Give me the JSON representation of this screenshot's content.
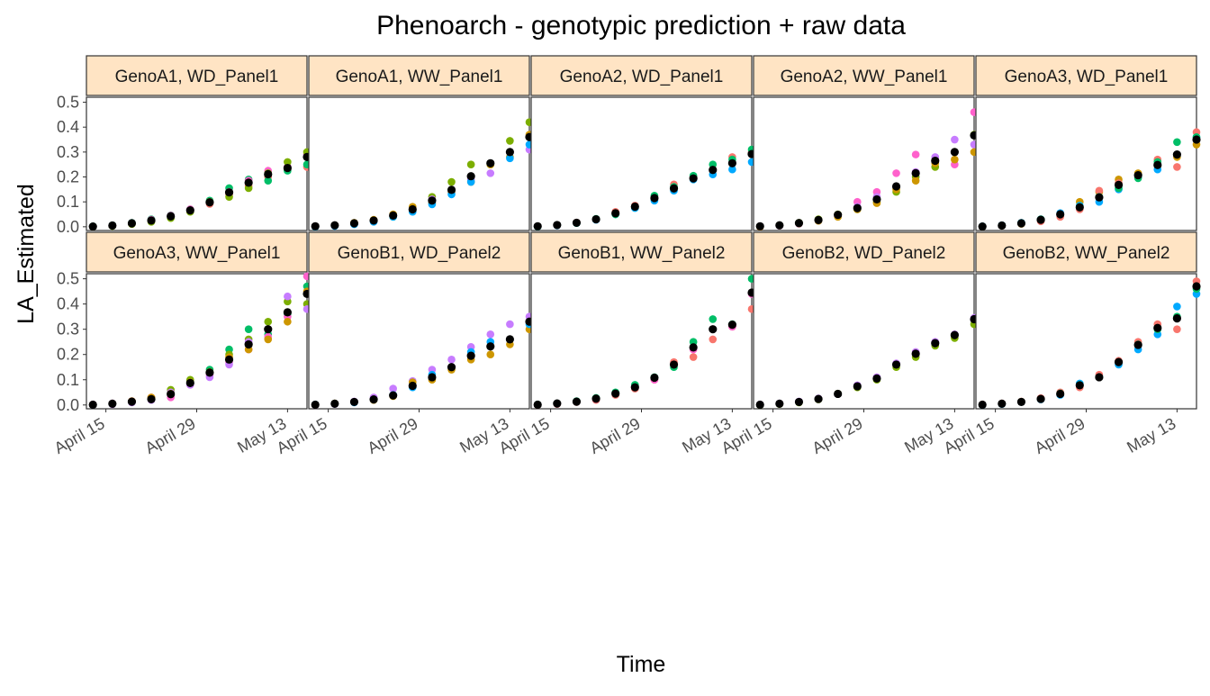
{
  "chart_data": {
    "type": "scatter",
    "title": "Phenoarch - genotypic prediction + raw data",
    "xlabel": "Time",
    "ylabel": "LA_Estimated",
    "x_ticks": [
      "April 15",
      "April 29",
      "May 13"
    ],
    "x_tick_dates": [
      "2017-04-15",
      "2017-04-29",
      "2017-05-13"
    ],
    "x_range": [
      "2017-04-12",
      "2017-05-16"
    ],
    "y_ticks": [
      "0.0",
      "0.1",
      "0.2",
      "0.3",
      "0.4",
      "0.5"
    ],
    "ylim": [
      -0.015,
      0.52
    ],
    "grid": false,
    "x_dates": [
      "2017-04-13",
      "2017-04-16",
      "2017-04-19",
      "2017-04-22",
      "2017-04-25",
      "2017-04-28",
      "2017-05-01",
      "2017-05-04",
      "2017-05-07",
      "2017-05-10",
      "2017-05-13",
      "2017-05-16"
    ],
    "colors": {
      "prediction": "#000000",
      "strip_fill": "#FFE4C4",
      "panel_border": "#333333",
      "replicates": [
        "#F8766D",
        "#CD9600",
        "#7CAE00",
        "#00BE67",
        "#00A9FF",
        "#C77CFF",
        "#FF61CC"
      ]
    },
    "panels": [
      {
        "label": "GenoA1, WD_Panel1",
        "prediction": [
          0.001,
          0.005,
          0.014,
          0.025,
          0.042,
          0.066,
          0.098,
          0.138,
          0.177,
          0.211,
          0.236,
          0.28
        ],
        "raw": [
          [
            0.0,
            0.004,
            0.012,
            0.022,
            0.04,
            0.062,
            0.092,
            0.13,
            0.165,
            0.2,
            0.23,
            0.24
          ],
          [
            0.002,
            0.006,
            0.016,
            0.03,
            0.046,
            0.07,
            0.105,
            0.155,
            0.19,
            0.185,
            0.225,
            0.25
          ],
          [
            0.001,
            0.005,
            0.015,
            0.028,
            0.045,
            0.07,
            0.1,
            0.14,
            0.185,
            0.225,
            0.24,
            0.29
          ],
          [
            0.0,
            0.003,
            0.011,
            0.02,
            0.035,
            0.06,
            0.1,
            0.12,
            0.155,
            0.215,
            0.26,
            0.3
          ]
        ]
      },
      {
        "label": "GenoA1, WW_Panel1",
        "prediction": [
          0.002,
          0.006,
          0.014,
          0.025,
          0.045,
          0.07,
          0.105,
          0.148,
          0.203,
          0.255,
          0.3,
          0.36
        ],
        "raw": [
          [
            0.0,
            0.005,
            0.012,
            0.022,
            0.04,
            0.065,
            0.12,
            0.18,
            0.25,
            0.25,
            0.345,
            0.42
          ],
          [
            0.001,
            0.004,
            0.013,
            0.023,
            0.042,
            0.072,
            0.11,
            0.14,
            0.19,
            0.215,
            0.3,
            0.31
          ],
          [
            0.002,
            0.006,
            0.016,
            0.028,
            0.05,
            0.08,
            0.095,
            0.14,
            0.18,
            0.25,
            0.28,
            0.37
          ],
          [
            0.0,
            0.003,
            0.01,
            0.02,
            0.04,
            0.06,
            0.09,
            0.13,
            0.18,
            0.255,
            0.275,
            0.33
          ]
        ]
      },
      {
        "label": "GenoA2, WD_Panel1",
        "prediction": [
          0.002,
          0.007,
          0.016,
          0.03,
          0.054,
          0.081,
          0.115,
          0.154,
          0.194,
          0.228,
          0.255,
          0.292
        ],
        "raw": [
          [
            0.001,
            0.005,
            0.015,
            0.028,
            0.05,
            0.075,
            0.105,
            0.145,
            0.19,
            0.21,
            0.23,
            0.26
          ],
          [
            0.002,
            0.006,
            0.017,
            0.03,
            0.06,
            0.085,
            0.12,
            0.17,
            0.2,
            0.23,
            0.28,
            0.3
          ],
          [
            0.001,
            0.007,
            0.015,
            0.032,
            0.05,
            0.08,
            0.125,
            0.16,
            0.205,
            0.25,
            0.27,
            0.31
          ]
        ]
      },
      {
        "label": "GenoA2, WW_Panel1",
        "prediction": [
          0.002,
          0.006,
          0.015,
          0.027,
          0.048,
          0.075,
          0.11,
          0.162,
          0.215,
          0.265,
          0.3,
          0.367
        ],
        "raw": [
          [
            0.0,
            0.005,
            0.014,
            0.025,
            0.045,
            0.1,
            0.14,
            0.215,
            0.29,
            0.27,
            0.25,
            0.46
          ],
          [
            0.001,
            0.006,
            0.016,
            0.03,
            0.05,
            0.07,
            0.1,
            0.14,
            0.2,
            0.24,
            0.3,
            0.37
          ],
          [
            0.002,
            0.004,
            0.012,
            0.025,
            0.045,
            0.08,
            0.12,
            0.16,
            0.22,
            0.28,
            0.35,
            0.33
          ],
          [
            0.0,
            0.005,
            0.013,
            0.024,
            0.04,
            0.07,
            0.095,
            0.15,
            0.185,
            0.255,
            0.27,
            0.3
          ]
        ]
      },
      {
        "label": "GenoA3, WD_Panel1",
        "prediction": [
          0.001,
          0.005,
          0.014,
          0.028,
          0.05,
          0.078,
          0.118,
          0.168,
          0.207,
          0.248,
          0.29,
          0.35
        ],
        "raw": [
          [
            0.0,
            0.004,
            0.012,
            0.025,
            0.05,
            0.1,
            0.14,
            0.19,
            0.215,
            0.245,
            0.28,
            0.33
          ],
          [
            0.002,
            0.006,
            0.016,
            0.03,
            0.055,
            0.085,
            0.1,
            0.15,
            0.2,
            0.23,
            0.29,
            0.36
          ],
          [
            0.001,
            0.004,
            0.013,
            0.022,
            0.04,
            0.07,
            0.145,
            0.175,
            0.205,
            0.27,
            0.24,
            0.38
          ],
          [
            0.001,
            0.005,
            0.015,
            0.03,
            0.05,
            0.08,
            0.12,
            0.155,
            0.195,
            0.26,
            0.34,
            0.36
          ]
        ]
      },
      {
        "label": "GenoA3, WW_Panel1",
        "prediction": [
          0.001,
          0.005,
          0.013,
          0.023,
          0.043,
          0.087,
          0.128,
          0.18,
          0.24,
          0.3,
          0.367,
          0.44
        ],
        "raw": [
          [
            0.0,
            0.004,
            0.012,
            0.025,
            0.05,
            0.095,
            0.14,
            0.22,
            0.3,
            0.28,
            0.36,
            0.47
          ],
          [
            0.002,
            0.006,
            0.015,
            0.03,
            0.03,
            0.08,
            0.12,
            0.17,
            0.22,
            0.27,
            0.35,
            0.51
          ],
          [
            0.001,
            0.005,
            0.014,
            0.028,
            0.06,
            0.1,
            0.13,
            0.2,
            0.26,
            0.33,
            0.41,
            0.4
          ],
          [
            0.0,
            0.003,
            0.01,
            0.02,
            0.05,
            0.08,
            0.11,
            0.16,
            0.25,
            0.3,
            0.43,
            0.38
          ],
          [
            0.001,
            0.005,
            0.015,
            0.03,
            0.045,
            0.09,
            0.13,
            0.19,
            0.22,
            0.26,
            0.33,
            0.45
          ]
        ]
      },
      {
        "label": "GenoB1, WD_Panel2",
        "prediction": [
          0.001,
          0.005,
          0.012,
          0.022,
          0.038,
          0.076,
          0.11,
          0.15,
          0.195,
          0.232,
          0.26,
          0.33
        ],
        "raw": [
          [
            0.0,
            0.004,
            0.014,
            0.03,
            0.065,
            0.095,
            0.14,
            0.18,
            0.23,
            0.28,
            0.32,
            0.35
          ],
          [
            0.001,
            0.006,
            0.012,
            0.02,
            0.035,
            0.09,
            0.1,
            0.14,
            0.18,
            0.2,
            0.24,
            0.3
          ],
          [
            0.002,
            0.005,
            0.01,
            0.022,
            0.04,
            0.07,
            0.12,
            0.15,
            0.21,
            0.25,
            0.26,
            0.32
          ]
        ]
      },
      {
        "label": "GenoB1, WW_Panel2",
        "prediction": [
          0.001,
          0.006,
          0.013,
          0.025,
          0.045,
          0.07,
          0.108,
          0.16,
          0.228,
          0.3,
          0.318,
          0.445
        ],
        "raw": [
          [
            0.0,
            0.004,
            0.012,
            0.02,
            0.04,
            0.065,
            0.1,
            0.17,
            0.19,
            0.26,
            0.31,
            0.38
          ],
          [
            0.002,
            0.006,
            0.015,
            0.028,
            0.05,
            0.08,
            0.11,
            0.15,
            0.25,
            0.34,
            0.32,
            0.5
          ],
          [
            0.001,
            0.005,
            0.013,
            0.024,
            0.045,
            0.07,
            0.1,
            0.16,
            0.22,
            0.3,
            0.31,
            0.44
          ]
        ]
      },
      {
        "label": "GenoB2, WD_Panel2",
        "prediction": [
          0.001,
          0.005,
          0.012,
          0.024,
          0.044,
          0.074,
          0.105,
          0.16,
          0.203,
          0.245,
          0.277,
          0.34
        ],
        "raw": [
          [
            0.0,
            0.004,
            0.01,
            0.022,
            0.045,
            0.07,
            0.1,
            0.15,
            0.19,
            0.235,
            0.265,
            0.32
          ],
          [
            0.002,
            0.006,
            0.014,
            0.026,
            0.043,
            0.078,
            0.11,
            0.165,
            0.21,
            0.25,
            0.28,
            0.345
          ]
        ]
      },
      {
        "label": "GenoB2, WW_Panel2",
        "prediction": [
          0.001,
          0.005,
          0.012,
          0.024,
          0.044,
          0.078,
          0.11,
          0.17,
          0.238,
          0.305,
          0.343,
          0.47
        ],
        "raw": [
          [
            0.0,
            0.004,
            0.012,
            0.022,
            0.04,
            0.085,
            0.115,
            0.16,
            0.22,
            0.28,
            0.39,
            0.44
          ],
          [
            0.002,
            0.006,
            0.014,
            0.027,
            0.05,
            0.07,
            0.12,
            0.175,
            0.25,
            0.32,
            0.3,
            0.49
          ],
          [
            0.001,
            0.005,
            0.013,
            0.024,
            0.046,
            0.08,
            0.11,
            0.17,
            0.24,
            0.3,
            0.35,
            0.46
          ]
        ]
      }
    ]
  }
}
